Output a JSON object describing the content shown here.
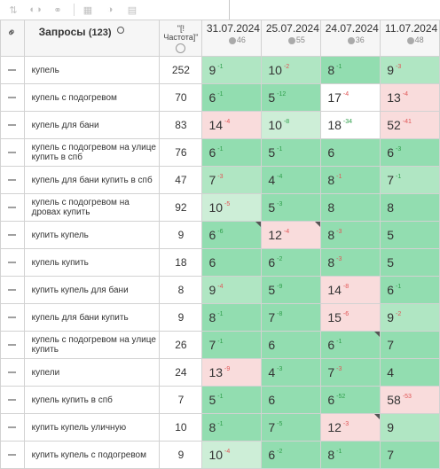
{
  "toolbar": {
    "icons": [
      "sort-icon",
      "toggle-icon",
      "link-icon",
      "calendar-icon",
      "contrast-icon",
      "export-icon"
    ]
  },
  "header": {
    "link_icon": "link-icon",
    "queries_label": "Запросы",
    "queries_count": "(123)",
    "search_icon": "search-icon",
    "freq_label": "\"[!Частота]\"",
    "dates": [
      {
        "date": "31.07.2024",
        "sub": "46"
      },
      {
        "date": "25.07.2024",
        "sub": "55"
      },
      {
        "date": "24.07.2024",
        "sub": "36"
      },
      {
        "date": "11.07.2024",
        "sub": "48"
      }
    ]
  },
  "colors": {
    "green_strong": "#92ddb0",
    "green_mid": "#b0e6c3",
    "green_light": "#cdeed7",
    "pink": "#f9dcdc",
    "white": "#ffffff"
  },
  "rows": [
    {
      "q": "купель",
      "f": "252",
      "cells": [
        {
          "v": "9",
          "d": "-1",
          "dir": "up",
          "bg": "green_mid"
        },
        {
          "v": "10",
          "d": "-2",
          "dir": "dn",
          "bg": "green_mid"
        },
        {
          "v": "8",
          "d": "-1",
          "dir": "up",
          "bg": "green_strong"
        },
        {
          "v": "9",
          "d": "-3",
          "dir": "dn",
          "bg": "green_mid"
        }
      ]
    },
    {
      "q": "купель с подогревом",
      "f": "70",
      "cells": [
        {
          "v": "6",
          "d": "-1",
          "dir": "up",
          "bg": "green_strong"
        },
        {
          "v": "5",
          "d": "-12",
          "dir": "up",
          "bg": "green_strong"
        },
        {
          "v": "17",
          "d": "-4",
          "dir": "dn",
          "bg": "white"
        },
        {
          "v": "13",
          "d": "-4",
          "dir": "dn",
          "bg": "pink"
        }
      ]
    },
    {
      "q": "купель для бани",
      "f": "83",
      "cells": [
        {
          "v": "14",
          "d": "-4",
          "dir": "dn",
          "bg": "pink"
        },
        {
          "v": "10",
          "d": "-8",
          "dir": "up",
          "bg": "green_light"
        },
        {
          "v": "18",
          "d": "-34",
          "dir": "up",
          "bg": "white"
        },
        {
          "v": "52",
          "d": "-41",
          "dir": "dn",
          "bg": "pink"
        }
      ]
    },
    {
      "q": "купель с подогревом на улице купить в спб",
      "f": "76",
      "cells": [
        {
          "v": "6",
          "d": "-1",
          "dir": "up",
          "bg": "green_strong"
        },
        {
          "v": "5",
          "d": "-1",
          "dir": "up",
          "bg": "green_strong"
        },
        {
          "v": "6",
          "d": "",
          "dir": "up",
          "bg": "green_strong"
        },
        {
          "v": "6",
          "d": "-3",
          "dir": "up",
          "bg": "green_strong"
        }
      ]
    },
    {
      "q": "купель для бани купить в спб",
      "f": "47",
      "cells": [
        {
          "v": "7",
          "d": "-3",
          "dir": "dn",
          "bg": "green_mid"
        },
        {
          "v": "4",
          "d": "-4",
          "dir": "up",
          "bg": "green_strong"
        },
        {
          "v": "8",
          "d": "-1",
          "dir": "dn",
          "bg": "green_strong"
        },
        {
          "v": "7",
          "d": "-1",
          "dir": "up",
          "bg": "green_mid"
        }
      ]
    },
    {
      "q": "купель с подогревом на дровах купить",
      "f": "92",
      "cells": [
        {
          "v": "10",
          "d": "-5",
          "dir": "dn",
          "bg": "green_light"
        },
        {
          "v": "5",
          "d": "-3",
          "dir": "up",
          "bg": "green_strong"
        },
        {
          "v": "8",
          "d": "",
          "dir": "up",
          "bg": "green_strong"
        },
        {
          "v": "8",
          "d": "",
          "dir": "up",
          "bg": "green_strong"
        }
      ]
    },
    {
      "q": "купить купель",
      "f": "9",
      "cells": [
        {
          "v": "6",
          "d": "-6",
          "dir": "up",
          "bg": "green_strong",
          "corner": true
        },
        {
          "v": "12",
          "d": "-4",
          "dir": "dn",
          "bg": "pink",
          "corner": true
        },
        {
          "v": "8",
          "d": "-3",
          "dir": "dn",
          "bg": "green_strong"
        },
        {
          "v": "5",
          "d": "",
          "dir": "up",
          "bg": "green_strong"
        }
      ]
    },
    {
      "q": "купель купить",
      "f": "18",
      "cells": [
        {
          "v": "6",
          "d": "",
          "dir": "up",
          "bg": "green_strong"
        },
        {
          "v": "6",
          "d": "-2",
          "dir": "up",
          "bg": "green_strong"
        },
        {
          "v": "8",
          "d": "-3",
          "dir": "dn",
          "bg": "green_strong"
        },
        {
          "v": "5",
          "d": "",
          "dir": "up",
          "bg": "green_strong"
        }
      ]
    },
    {
      "q": "купить купель для бани",
      "f": "8",
      "cells": [
        {
          "v": "9",
          "d": "-4",
          "dir": "dn",
          "bg": "green_mid"
        },
        {
          "v": "5",
          "d": "-9",
          "dir": "up",
          "bg": "green_strong"
        },
        {
          "v": "14",
          "d": "-8",
          "dir": "dn",
          "bg": "pink"
        },
        {
          "v": "6",
          "d": "-1",
          "dir": "up",
          "bg": "green_strong"
        }
      ]
    },
    {
      "q": "купель для бани купить",
      "f": "9",
      "cells": [
        {
          "v": "8",
          "d": "-1",
          "dir": "up",
          "bg": "green_strong"
        },
        {
          "v": "7",
          "d": "-8",
          "dir": "up",
          "bg": "green_strong"
        },
        {
          "v": "15",
          "d": "-6",
          "dir": "dn",
          "bg": "pink"
        },
        {
          "v": "9",
          "d": "-2",
          "dir": "dn",
          "bg": "green_mid"
        }
      ]
    },
    {
      "q": "купель с подогревом на улице купить",
      "f": "26",
      "cells": [
        {
          "v": "7",
          "d": "-1",
          "dir": "up",
          "bg": "green_strong"
        },
        {
          "v": "6",
          "d": "",
          "dir": "up",
          "bg": "green_strong"
        },
        {
          "v": "6",
          "d": "-1",
          "dir": "up",
          "bg": "green_strong",
          "corner": true
        },
        {
          "v": "7",
          "d": "",
          "dir": "up",
          "bg": "green_strong"
        }
      ]
    },
    {
      "q": "купели",
      "f": "24",
      "cells": [
        {
          "v": "13",
          "d": "-9",
          "dir": "dn",
          "bg": "pink"
        },
        {
          "v": "4",
          "d": "-3",
          "dir": "up",
          "bg": "green_strong"
        },
        {
          "v": "7",
          "d": "-3",
          "dir": "dn",
          "bg": "green_strong"
        },
        {
          "v": "4",
          "d": "",
          "dir": "up",
          "bg": "green_strong"
        }
      ]
    },
    {
      "q": "купель купить в спб",
      "f": "7",
      "cells": [
        {
          "v": "5",
          "d": "-1",
          "dir": "up",
          "bg": "green_strong"
        },
        {
          "v": "6",
          "d": "",
          "dir": "up",
          "bg": "green_strong"
        },
        {
          "v": "6",
          "d": "-52",
          "dir": "up",
          "bg": "green_strong"
        },
        {
          "v": "58",
          "d": "-53",
          "dir": "dn",
          "bg": "pink"
        }
      ]
    },
    {
      "q": "купить купель уличную",
      "f": "10",
      "cells": [
        {
          "v": "8",
          "d": "-1",
          "dir": "up",
          "bg": "green_strong"
        },
        {
          "v": "7",
          "d": "-5",
          "dir": "up",
          "bg": "green_strong"
        },
        {
          "v": "12",
          "d": "-3",
          "dir": "dn",
          "bg": "pink",
          "corner": true
        },
        {
          "v": "9",
          "d": "",
          "dir": "up",
          "bg": "green_mid"
        }
      ]
    },
    {
      "q": "купить купель с подогревом",
      "f": "9",
      "cells": [
        {
          "v": "10",
          "d": "-4",
          "dir": "dn",
          "bg": "green_light"
        },
        {
          "v": "6",
          "d": "-2",
          "dir": "up",
          "bg": "green_strong"
        },
        {
          "v": "8",
          "d": "-1",
          "dir": "up",
          "bg": "green_strong"
        },
        {
          "v": "7",
          "d": "",
          "dir": "up",
          "bg": "green_strong"
        }
      ]
    }
  ]
}
